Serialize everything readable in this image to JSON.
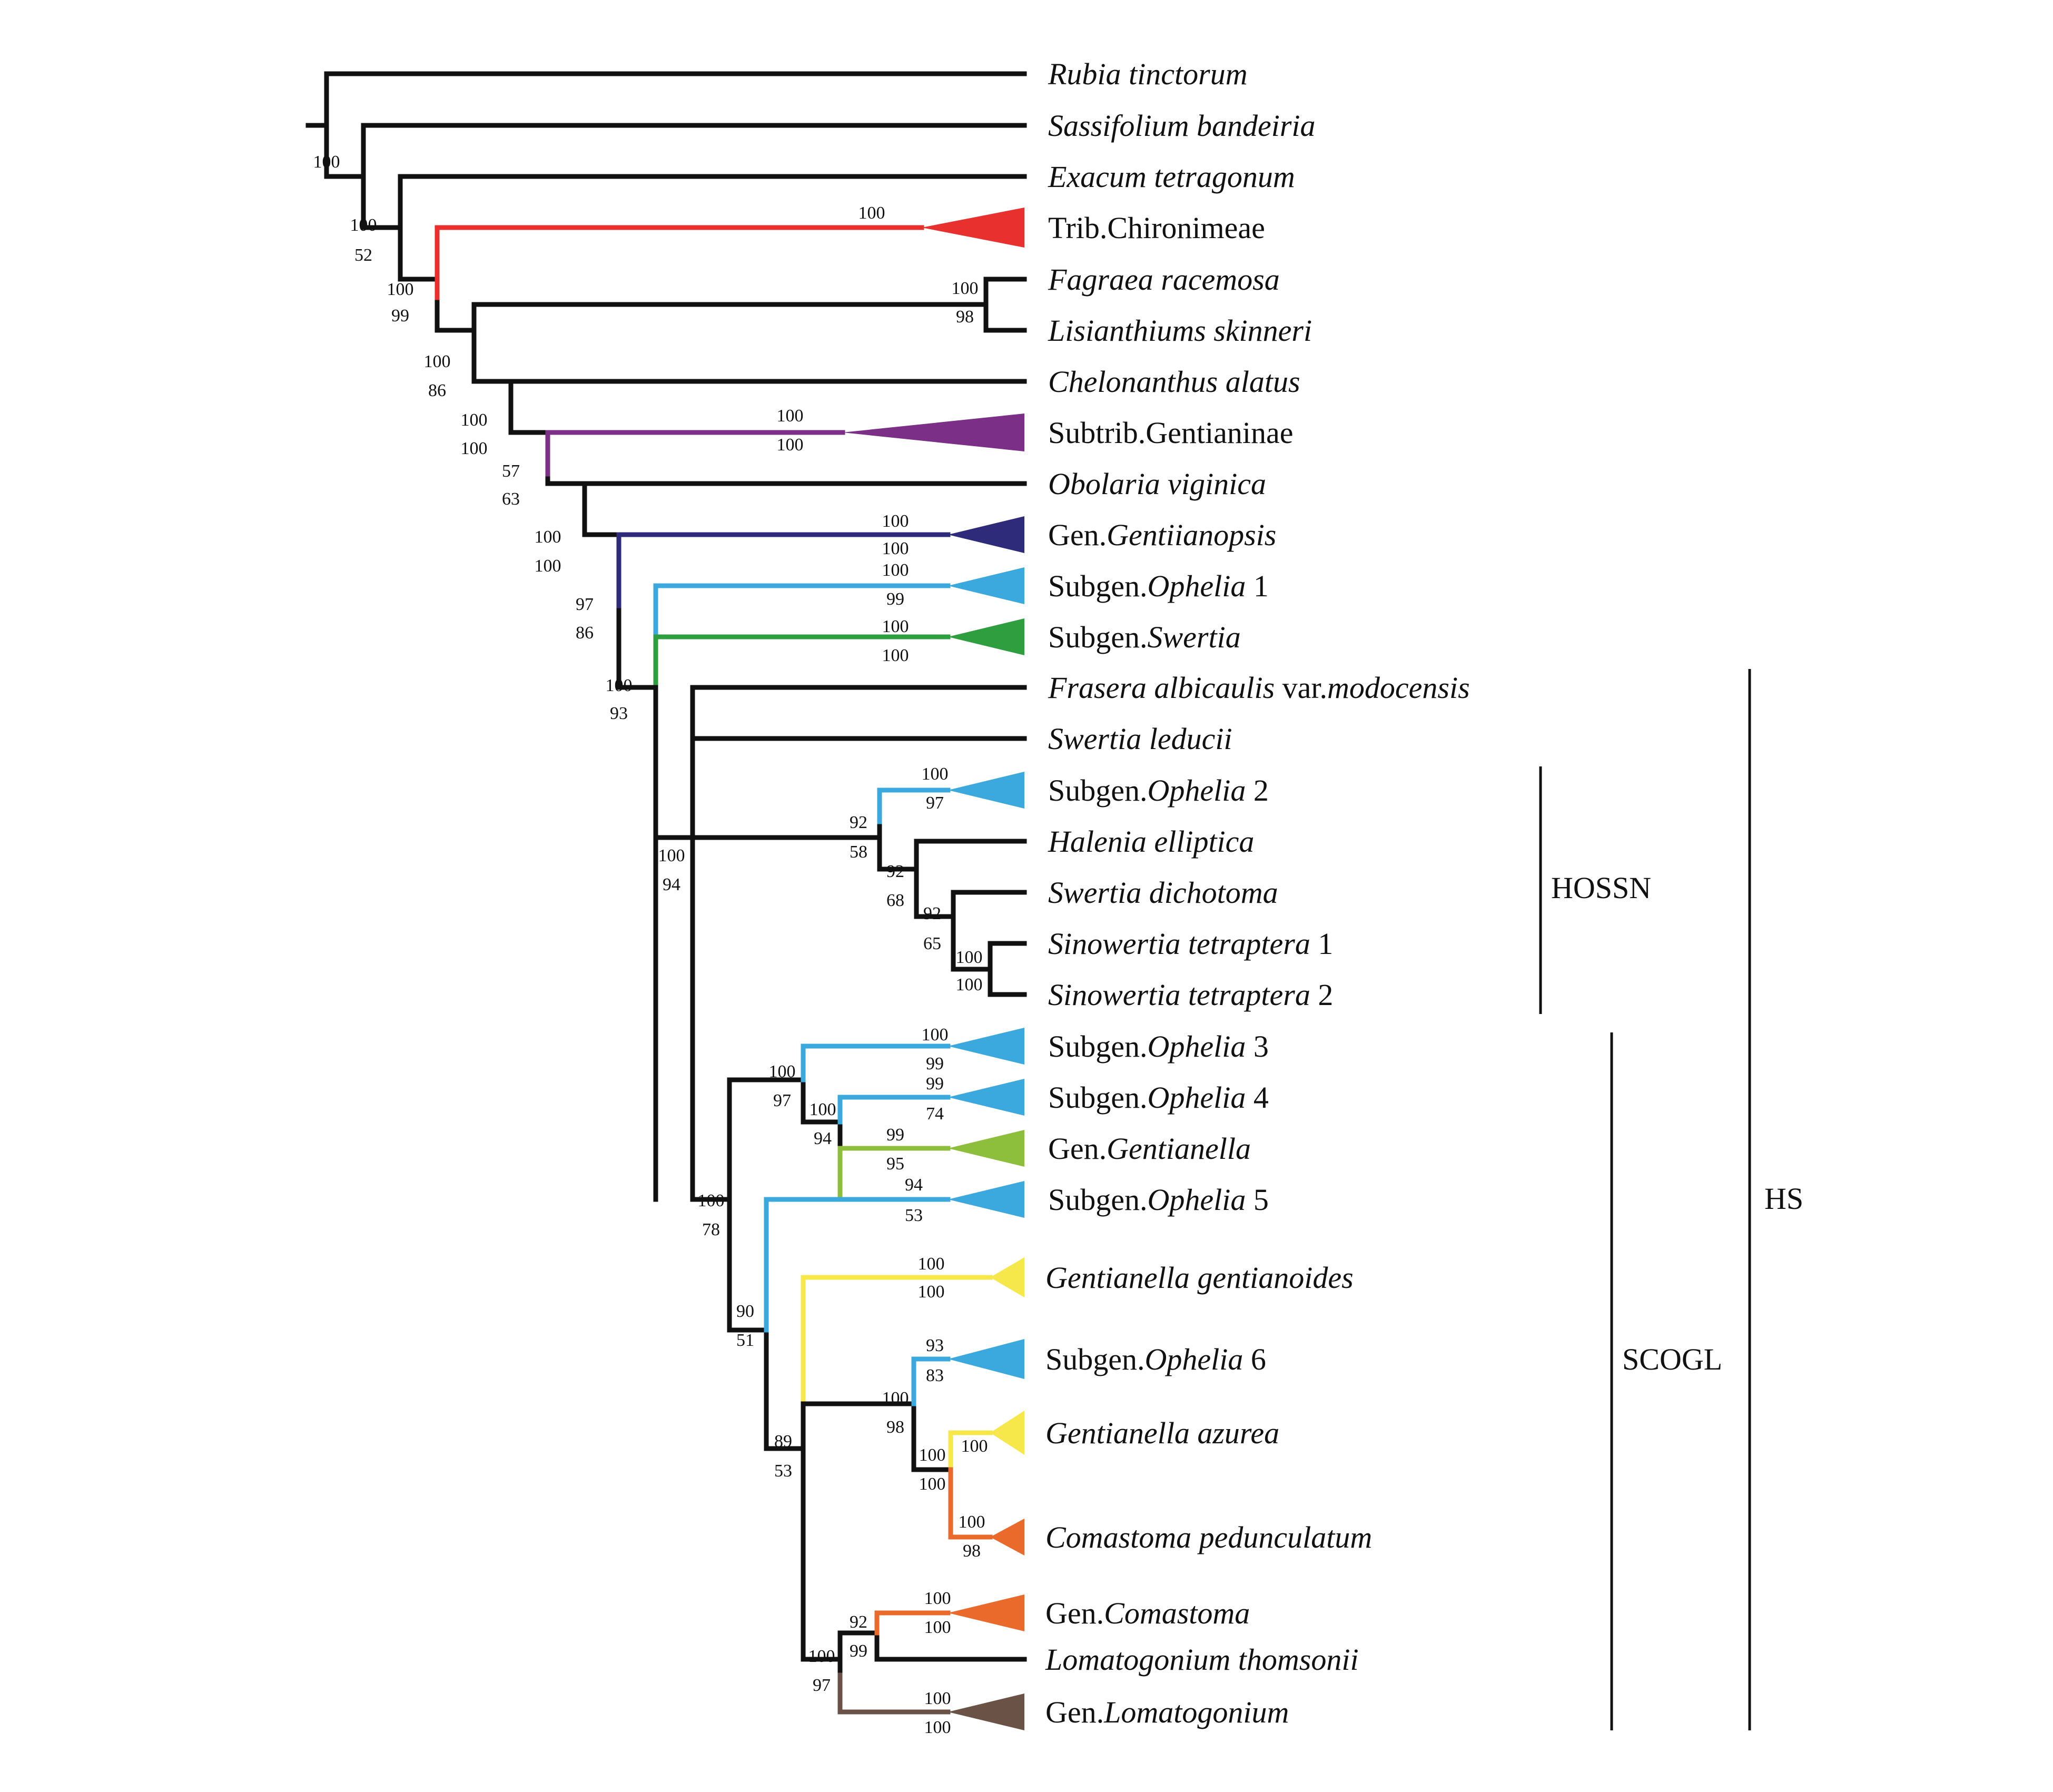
{
  "taxa": [
    {
      "id": "rubia",
      "parts": [
        {
          "t": "Rubia tinctorum",
          "i": true
        }
      ]
    },
    {
      "id": "sassifolium",
      "parts": [
        {
          "t": "Sassifolium bandeiria",
          "i": true
        }
      ]
    },
    {
      "id": "exacum",
      "parts": [
        {
          "t": "Exacum tetragonum",
          "i": true
        }
      ]
    },
    {
      "id": "chironieae",
      "parts": [
        {
          "t": "Trib.Chironimeae",
          "i": false
        }
      ]
    },
    {
      "id": "fagraea",
      "parts": [
        {
          "t": "Fagraea racemosa",
          "i": true
        }
      ]
    },
    {
      "id": "lisianthius",
      "parts": [
        {
          "t": "Lisianthiums skinneri",
          "i": true
        }
      ]
    },
    {
      "id": "chelonanthus",
      "parts": [
        {
          "t": "Chelonanthus alatus",
          "i": true
        }
      ]
    },
    {
      "id": "gentianinae",
      "parts": [
        {
          "t": "Subtrib.Gentianinae",
          "i": false
        }
      ]
    },
    {
      "id": "obolaria",
      "parts": [
        {
          "t": "Obolaria viginica",
          "i": true
        }
      ]
    },
    {
      "id": "gentianopsis",
      "parts": [
        {
          "t": "Gen.",
          "i": false
        },
        {
          "t": "Gentiianopsis",
          "i": true
        }
      ]
    },
    {
      "id": "ophelia1",
      "parts": [
        {
          "t": "Subgen.",
          "i": false
        },
        {
          "t": "Ophelia",
          "i": true
        },
        {
          "t": " 1",
          "i": false
        }
      ]
    },
    {
      "id": "swertia_sg",
      "parts": [
        {
          "t": "Subgen.",
          "i": false
        },
        {
          "t": "Swertia",
          "i": true
        }
      ]
    },
    {
      "id": "frasera",
      "parts": [
        {
          "t": "Frasera albicaulis",
          "i": true
        },
        {
          "t": " var.",
          "i": false
        },
        {
          "t": "modocensis",
          "i": true
        }
      ]
    },
    {
      "id": "leducii",
      "parts": [
        {
          "t": "Swertia leducii",
          "i": true
        }
      ]
    },
    {
      "id": "ophelia2",
      "parts": [
        {
          "t": "Subgen.",
          "i": false
        },
        {
          "t": "Ophelia",
          "i": true
        },
        {
          "t": " 2",
          "i": false
        }
      ]
    },
    {
      "id": "halenia",
      "parts": [
        {
          "t": "Halenia elliptica",
          "i": true
        }
      ]
    },
    {
      "id": "dichotoma",
      "parts": [
        {
          "t": "Swertia dichotoma",
          "i": true
        }
      ]
    },
    {
      "id": "sino1",
      "parts": [
        {
          "t": "Sinowertia tetraptera",
          "i": true
        },
        {
          "t": " 1",
          "i": false
        }
      ]
    },
    {
      "id": "sino2",
      "parts": [
        {
          "t": "Sinowertia tetraptera",
          "i": true
        },
        {
          "t": " 2",
          "i": false
        }
      ]
    },
    {
      "id": "ophelia3",
      "parts": [
        {
          "t": "Subgen.",
          "i": false
        },
        {
          "t": "Ophelia",
          "i": true
        },
        {
          "t": " 3",
          "i": false
        }
      ]
    },
    {
      "id": "ophelia4",
      "parts": [
        {
          "t": "Subgen.",
          "i": false
        },
        {
          "t": "Ophelia",
          "i": true
        },
        {
          "t": " 4",
          "i": false
        }
      ]
    },
    {
      "id": "gentianella_gen",
      "parts": [
        {
          "t": "Gen.",
          "i": false
        },
        {
          "t": "Gentianella",
          "i": true
        }
      ]
    },
    {
      "id": "ophelia5",
      "parts": [
        {
          "t": "Subgen.",
          "i": false
        },
        {
          "t": "Ophelia",
          "i": true
        },
        {
          "t": " 5",
          "i": false
        }
      ]
    },
    {
      "id": "g_gentianoides",
      "parts": [
        {
          "t": "Gentianella gentianoides",
          "i": true
        }
      ]
    },
    {
      "id": "ophelia6",
      "parts": [
        {
          "t": "Subgen.",
          "i": false
        },
        {
          "t": "Ophelia",
          "i": true
        },
        {
          "t": " 6",
          "i": false
        }
      ]
    },
    {
      "id": "g_azurea",
      "parts": [
        {
          "t": "Gentianella azurea",
          "i": true
        }
      ]
    },
    {
      "id": "c_pedunculatum",
      "parts": [
        {
          "t": "Comastoma pedunculatum",
          "i": true
        }
      ]
    },
    {
      "id": "comastoma_gen",
      "parts": [
        {
          "t": "Gen.",
          "i": false
        },
        {
          "t": "Comastoma",
          "i": true
        }
      ]
    },
    {
      "id": "l_thomsonii",
      "parts": [
        {
          "t": "Lomatogonium thomsonii",
          "i": true
        }
      ]
    },
    {
      "id": "lomatogonium_gen",
      "parts": [
        {
          "t": "Gen.",
          "i": false
        },
        {
          "t": "Lomatogonium",
          "i": true
        }
      ]
    }
  ],
  "supports": [
    {
      "node": "n_root_inner",
      "top": "100",
      "bottom": ""
    },
    {
      "node": "n_sassi",
      "top": "100",
      "bottom": "52"
    },
    {
      "node": "n_exacum",
      "top": "100",
      "bottom": "99"
    },
    {
      "node": "chironieae_tip",
      "top": "100",
      "bottom": ""
    },
    {
      "node": "n_fag_lis",
      "top": "100",
      "bottom": "98"
    },
    {
      "node": "n_chiron",
      "top": "100",
      "bottom": "86"
    },
    {
      "node": "n_fag",
      "top": "100",
      "bottom": "100"
    },
    {
      "node": "gentianinae_tip",
      "top": "100",
      "bottom": "100"
    },
    {
      "node": "n_chelon",
      "top": "57",
      "bottom": "63"
    },
    {
      "node": "n_gentianinae",
      "top": "100",
      "bottom": "100"
    },
    {
      "node": "gentianopsis_tip",
      "top": "100",
      "bottom": "100"
    },
    {
      "node": "n_obolaria",
      "top": "97",
      "bottom": "86"
    },
    {
      "node": "ophelia1_tip",
      "top": "100",
      "bottom": "99"
    },
    {
      "node": "swertia_tip",
      "top": "100",
      "bottom": "100"
    },
    {
      "node": "n_gentianopsis",
      "top": "100",
      "bottom": "93"
    },
    {
      "node": "ophelia2_tip",
      "top": "100",
      "bottom": "97"
    },
    {
      "node": "n_hossn",
      "top": "92",
      "bottom": "58"
    },
    {
      "node": "n_halenia",
      "top": "92",
      "bottom": "68"
    },
    {
      "node": "n_dichotoma",
      "top": "92",
      "bottom": "65"
    },
    {
      "node": "n_sino",
      "top": "100",
      "bottom": "100"
    },
    {
      "node": "n_hs",
      "top": "100",
      "bottom": "94"
    },
    {
      "node": "ophelia3_tip",
      "top": "100",
      "bottom": "99"
    },
    {
      "node": "n_oph3",
      "top": "100",
      "bottom": "97"
    },
    {
      "node": "ophelia4_tip",
      "top": "99",
      "bottom": "74"
    },
    {
      "node": "n_oph4",
      "top": "100",
      "bottom": "94"
    },
    {
      "node": "gentianella_tip",
      "top": "99",
      "bottom": "95"
    },
    {
      "node": "ophelia5_tip",
      "top": "94",
      "bottom": "53"
    },
    {
      "node": "n_scogl",
      "top": "100",
      "bottom": "78"
    },
    {
      "node": "n_oph5",
      "top": "90",
      "bottom": "51"
    },
    {
      "node": "g_gentianoides_tip",
      "top": "100",
      "bottom": "100"
    },
    {
      "node": "ophelia6_tip",
      "top": "93",
      "bottom": "83"
    },
    {
      "node": "n_oph6",
      "top": "100",
      "bottom": "98"
    },
    {
      "node": "n_gentianoides",
      "top": "89",
      "bottom": "53"
    },
    {
      "node": "n_azurea",
      "top": "100",
      "bottom": "100"
    },
    {
      "node": "g_azurea_tip",
      "top": "100",
      "bottom": ""
    },
    {
      "node": "c_pedunculatum_tip",
      "top": "100",
      "bottom": "98"
    },
    {
      "node": "comastoma_tip",
      "top": "100",
      "bottom": "100"
    },
    {
      "node": "n_comastoma",
      "top": "92",
      "bottom": "99"
    },
    {
      "node": "n_lomato",
      "top": "100",
      "bottom": "97"
    },
    {
      "node": "lomatogonium_tip",
      "top": "100",
      "bottom": "100"
    }
  ],
  "clades": [
    {
      "id": "hossn",
      "label": "HOSSN"
    },
    {
      "id": "scogl",
      "label": "SCOGL"
    },
    {
      "id": "hs",
      "label": "HS"
    }
  ],
  "colors": {
    "branch_default": "#111111",
    "chironimeae": "#e8312f",
    "gentianinae": "#7b2f86",
    "gentiianopsis": "#2e2b7a",
    "ophelia": "#3ba9dd",
    "swertia": "#2f9e3f",
    "gentianella": "#8dbf3c",
    "gentianella_yellow": "#f6e84a",
    "comastoma": "#ea6a2c",
    "lomatogonium": "#6b5247"
  }
}
